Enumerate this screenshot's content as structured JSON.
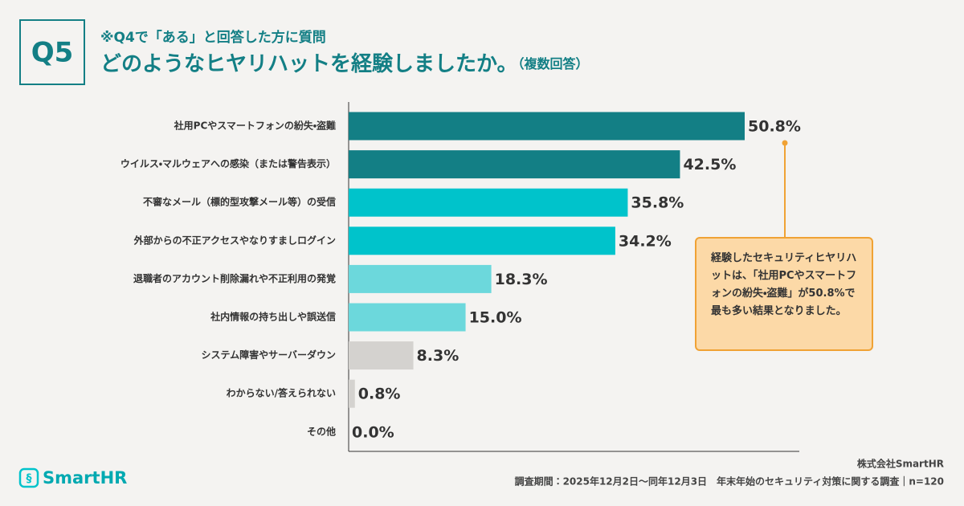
{
  "chart_data": {
    "type": "hbar",
    "badge": "Q5",
    "subtitle": "※Q4で「ある」と回答した方に質問",
    "title": "どのようなヒヤリハットを経験しましたか。",
    "title_note": "（複数回答）",
    "categories": [
      "社用PCやスマートフォンの紛失・盗難",
      "ウイルス・マルウェアへの感染（または警告表示）",
      "不審なメール（標的型攻撃メール等）の受信",
      "外部からの不正アクセスやなりすましログイン",
      "退職者のアカウント削除漏れや不正利用の発覚",
      "社内情報の持ち出しや誤送信",
      "システム障害やサーバーダウン",
      "わからない/答えられない",
      "その他"
    ],
    "values": [
      50.8,
      42.5,
      35.8,
      34.2,
      18.3,
      15.0,
      8.3,
      0.8,
      0.0
    ],
    "value_labels": [
      "50.8%",
      "42.5%",
      "35.8%",
      "34.2%",
      "18.3%",
      "15.0%",
      "8.3%",
      "0.8%",
      "0.0%"
    ],
    "colors": [
      "#137f85",
      "#137f85",
      "#00c3cb",
      "#00c3cb",
      "#6cd8dc",
      "#6cd8dc",
      "#d4d2cf",
      "#d4d2cf",
      "#d4d2cf"
    ],
    "annotation": "経験したセキュリティヒヤリハットは、「社用PCやスマートフォンの紛失・盗難」が50.8%で最も多い結果となりました。",
    "logo": "SmartHR",
    "source": "株式会社SmartHR",
    "footnote": "調査期間：2025年12月2日〜同年12月3日　年末年始のセキュリティ対策に関する調査｜n=120"
  }
}
